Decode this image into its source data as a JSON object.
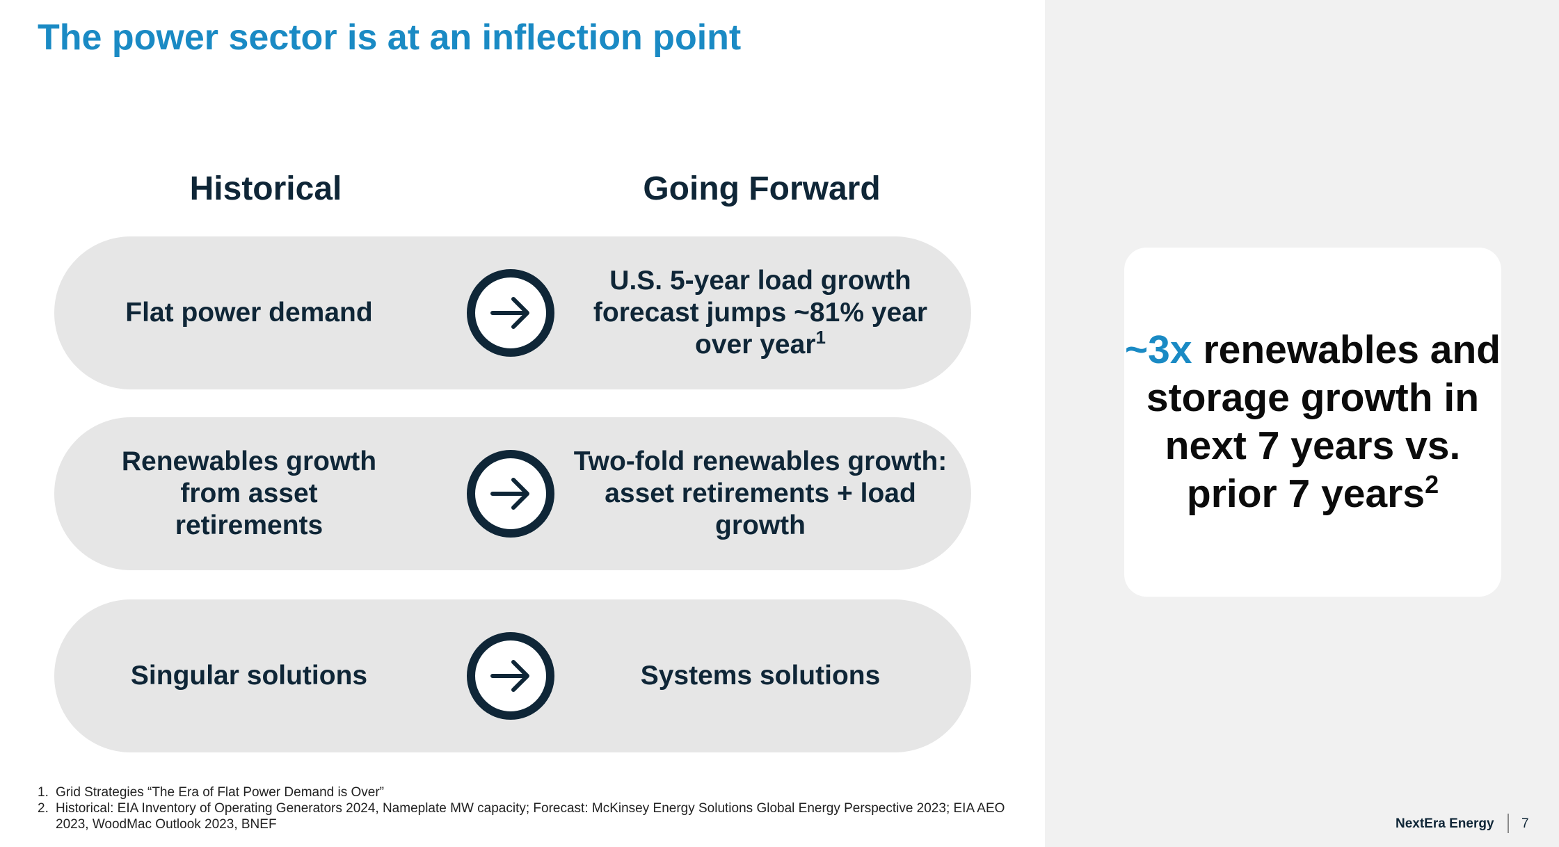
{
  "slide": {
    "title": "The power sector is at an inflection point"
  },
  "columns": {
    "historical": "Historical",
    "forward": "Going Forward"
  },
  "rows": [
    {
      "historical": "Flat power demand",
      "forward_text": "U.S. 5-year load growth forecast jumps ~81% year over year",
      "forward_sup": "1",
      "arrow_icon": "arrow-right-icon"
    },
    {
      "historical": "Renewables growth from asset retirements",
      "forward_text": "Two-fold renewables growth: asset retirements + load growth",
      "forward_sup": "",
      "arrow_icon": "arrow-right-icon"
    },
    {
      "historical": "Singular solutions",
      "forward_text": "Systems solutions",
      "forward_sup": "",
      "arrow_icon": "arrow-right-icon"
    }
  ],
  "callout": {
    "accent": "~3x",
    "text": "renewables and storage growth in next 7 years vs. prior 7 years",
    "sup": "2"
  },
  "footnotes": [
    {
      "num": "1.",
      "text": "Grid Strategies “The Era of Flat Power Demand is Over”"
    },
    {
      "num": "2.",
      "text": "Historical: EIA Inventory of Operating Generators 2024, Nameplate MW capacity; Forecast: McKinsey Energy Solutions Global Energy Perspective 2023; EIA AEO 2023, WoodMac Outlook 2023, BNEF"
    }
  ],
  "footer": {
    "brand": "NextEra Energy",
    "page": "7"
  },
  "colors": {
    "accent_blue": "#1a8ac4",
    "dark_navy": "#0f2637",
    "pill_gray": "#e6e6e6",
    "panel_gray": "#f1f1f1"
  }
}
